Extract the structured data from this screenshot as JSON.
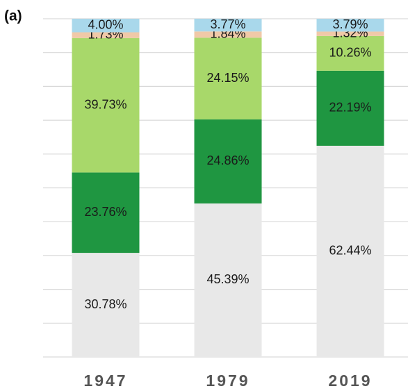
{
  "chart_data": {
    "type": "stacked_bar",
    "title": "(a)",
    "categories": [
      "1947",
      "1979",
      "2019"
    ],
    "ylim": [
      0,
      100
    ],
    "yticks": [
      0,
      10,
      20,
      30,
      40,
      50,
      60,
      70,
      80,
      90,
      100
    ],
    "grid": true,
    "series": [
      {
        "color": "#e8e8e8",
        "values": [
          30.78,
          45.39,
          62.44
        ],
        "value_labels": [
          "30.78%",
          "45.39%",
          "62.44%"
        ]
      },
      {
        "color": "#1f9641",
        "values": [
          23.76,
          24.86,
          22.19
        ],
        "value_labels": [
          "23.76%",
          "24.86%",
          "22.19%"
        ]
      },
      {
        "color": "#a8d86a",
        "values": [
          39.73,
          24.15,
          10.26
        ],
        "value_labels": [
          "39.73%",
          "24.15%",
          "10.26%"
        ]
      },
      {
        "color": "#f0c9a8",
        "values": [
          1.73,
          1.84,
          1.32
        ],
        "value_labels": [
          "1.73%",
          "1.84%",
          "1.32%"
        ]
      },
      {
        "color": "#a9d8eb",
        "values": [
          4.0,
          3.77,
          3.79
        ],
        "value_labels": [
          "4.00%",
          "3.77%",
          "3.79%"
        ]
      }
    ]
  }
}
